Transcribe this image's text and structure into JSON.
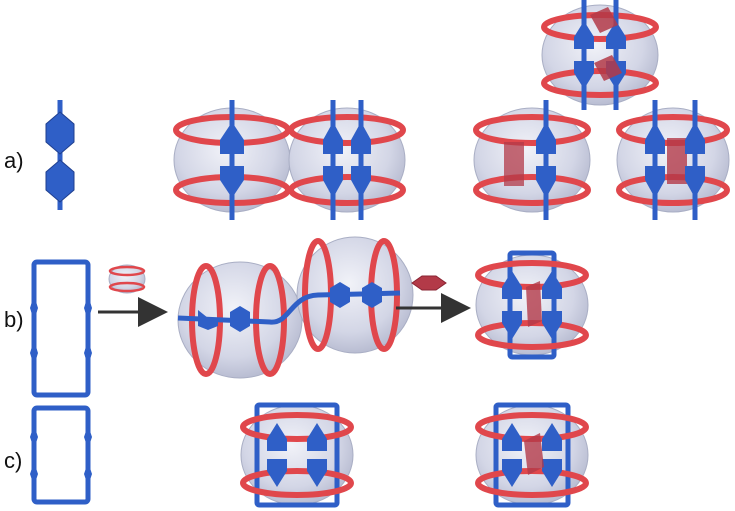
{
  "labels": {
    "a": "a)",
    "b": "b)",
    "c": "c)"
  },
  "colors": {
    "ring": "#e0474c",
    "ring_dark": "#b22a30",
    "strand": "#2f5fc7",
    "strand_dark": "#1f3f8f",
    "cage_fill": "#cfd3e6",
    "cage_edge": "#a9aec4",
    "guest": "#b33a48",
    "arrow": "#333333"
  }
}
